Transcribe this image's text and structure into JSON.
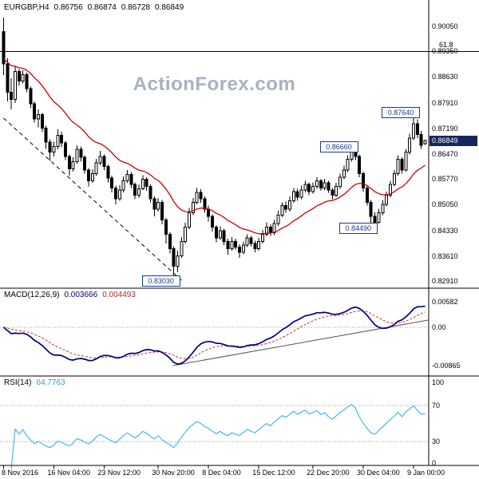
{
  "watermark": {
    "text": "ActionForex.com"
  },
  "colors": {
    "ma_line": "#d00000",
    "candle": "#000000",
    "macd_line": "#000080",
    "macd_signal": "#c03333",
    "rsi_line": "#49b8e8",
    "callout_blue": "#1a3a8c",
    "badge_bg": "#16265f",
    "watermark": "#a7b1c2"
  },
  "chart_data": {
    "type": "candlestick",
    "title": "EURGBP,H4",
    "ohlc_display": {
      "symbol": "EURGBP,H4",
      "open": "0.86756",
      "high": "0.86874",
      "low": "0.86728",
      "close": "0.86849"
    },
    "y_axis_labels": [
      "0.90050",
      "0.89350",
      "0.88630",
      "0.87910",
      "0.87190",
      "0.86470",
      "0.85770",
      "0.85050",
      "0.84330",
      "0.83610",
      "0.82910"
    ],
    "x_labels": [
      {
        "text": "8 Nov 2016",
        "bar": 0
      },
      {
        "text": "16 Nov 04:00",
        "bar": 13
      },
      {
        "text": "23 Nov 12:00",
        "bar": 26
      },
      {
        "text": "30 Nov 20:00",
        "bar": 40
      },
      {
        "text": "8 Dec 04:00",
        "bar": 53
      },
      {
        "text": "15 Dec 12:00",
        "bar": 66
      },
      {
        "text": "22 Dec 20:00",
        "bar": 80
      },
      {
        "text": "30 Dec 04:00",
        "bar": 93
      },
      {
        "text": "9 Jan 00:00",
        "bar": 106
      }
    ],
    "candles": [
      [
        0.899,
        0.903,
        0.8868,
        0.89
      ],
      [
        0.89,
        0.8915,
        0.8795,
        0.882
      ],
      [
        0.882,
        0.886,
        0.8772,
        0.88
      ],
      [
        0.88,
        0.8892,
        0.879,
        0.8878
      ],
      [
        0.8878,
        0.8885,
        0.8838,
        0.8852
      ],
      [
        0.8852,
        0.8882,
        0.8845,
        0.887
      ],
      [
        0.887,
        0.8875,
        0.882,
        0.883
      ],
      [
        0.883,
        0.8836,
        0.8776,
        0.8788
      ],
      [
        0.8788,
        0.8795,
        0.8735,
        0.8745
      ],
      [
        0.8745,
        0.8772,
        0.8722,
        0.8758
      ],
      [
        0.8758,
        0.8762,
        0.8708,
        0.872
      ],
      [
        0.872,
        0.8726,
        0.8662,
        0.868
      ],
      [
        0.868,
        0.8688,
        0.8628,
        0.8652
      ],
      [
        0.8652,
        0.8682,
        0.864,
        0.8668
      ],
      [
        0.8668,
        0.8716,
        0.866,
        0.87
      ],
      [
        0.87,
        0.871,
        0.8666,
        0.8678
      ],
      [
        0.8678,
        0.8684,
        0.863,
        0.864
      ],
      [
        0.864,
        0.8646,
        0.8586,
        0.8606
      ],
      [
        0.8606,
        0.8638,
        0.8598,
        0.8626
      ],
      [
        0.8626,
        0.8672,
        0.862,
        0.866
      ],
      [
        0.866,
        0.8668,
        0.8626,
        0.8638
      ],
      [
        0.8638,
        0.8644,
        0.8592,
        0.8602
      ],
      [
        0.8602,
        0.8608,
        0.8556,
        0.8572
      ],
      [
        0.8572,
        0.8604,
        0.8566,
        0.8592
      ],
      [
        0.8592,
        0.8634,
        0.8586,
        0.8622
      ],
      [
        0.8622,
        0.8656,
        0.8616,
        0.864
      ],
      [
        0.864,
        0.8646,
        0.8602,
        0.8612
      ],
      [
        0.8612,
        0.8618,
        0.8568,
        0.858
      ],
      [
        0.858,
        0.8586,
        0.854,
        0.8552
      ],
      [
        0.8552,
        0.8558,
        0.8506,
        0.8522
      ],
      [
        0.8522,
        0.856,
        0.8516,
        0.8546
      ],
      [
        0.8546,
        0.8584,
        0.854,
        0.8572
      ],
      [
        0.8572,
        0.8602,
        0.8566,
        0.859
      ],
      [
        0.859,
        0.8596,
        0.8552,
        0.8562
      ],
      [
        0.8562,
        0.8568,
        0.852,
        0.8532
      ],
      [
        0.8532,
        0.8562,
        0.8524,
        0.855
      ],
      [
        0.855,
        0.8588,
        0.8546,
        0.8576
      ],
      [
        0.8576,
        0.8582,
        0.8544,
        0.8556
      ],
      [
        0.8556,
        0.8562,
        0.8512,
        0.8522
      ],
      [
        0.8522,
        0.8528,
        0.8472,
        0.8492
      ],
      [
        0.8492,
        0.8524,
        0.8486,
        0.8512
      ],
      [
        0.8512,
        0.8518,
        0.845,
        0.8462
      ],
      [
        0.8462,
        0.8468,
        0.8396,
        0.8422
      ],
      [
        0.8422,
        0.8428,
        0.8368,
        0.8382
      ],
      [
        0.8382,
        0.8388,
        0.8303,
        0.8332
      ],
      [
        0.8332,
        0.8376,
        0.8316,
        0.8362
      ],
      [
        0.8362,
        0.8414,
        0.8356,
        0.8402
      ],
      [
        0.8402,
        0.8454,
        0.8396,
        0.8442
      ],
      [
        0.8442,
        0.8496,
        0.8436,
        0.8482
      ],
      [
        0.8482,
        0.8524,
        0.8476,
        0.8512
      ],
      [
        0.8512,
        0.8552,
        0.8506,
        0.854
      ],
      [
        0.854,
        0.8548,
        0.851,
        0.8522
      ],
      [
        0.8522,
        0.8528,
        0.8482,
        0.8492
      ],
      [
        0.8492,
        0.8502,
        0.8458,
        0.8472
      ],
      [
        0.8472,
        0.8478,
        0.843,
        0.8442
      ],
      [
        0.8442,
        0.8448,
        0.84,
        0.8412
      ],
      [
        0.8412,
        0.8444,
        0.8406,
        0.8432
      ],
      [
        0.8432,
        0.8438,
        0.8392,
        0.8402
      ],
      [
        0.8402,
        0.841,
        0.8365,
        0.8382
      ],
      [
        0.8382,
        0.8414,
        0.8376,
        0.8402
      ],
      [
        0.8402,
        0.841,
        0.8378,
        0.8386
      ],
      [
        0.8386,
        0.8394,
        0.8356,
        0.8372
      ],
      [
        0.8372,
        0.8402,
        0.8366,
        0.8392
      ],
      [
        0.8392,
        0.8422,
        0.8386,
        0.8412
      ],
      [
        0.8412,
        0.8418,
        0.8388,
        0.8396
      ],
      [
        0.8396,
        0.8404,
        0.8372,
        0.8382
      ],
      [
        0.8382,
        0.8412,
        0.8376,
        0.8402
      ],
      [
        0.8402,
        0.8434,
        0.8396,
        0.8422
      ],
      [
        0.8422,
        0.8456,
        0.8416,
        0.8442
      ],
      [
        0.8442,
        0.845,
        0.8418,
        0.8426
      ],
      [
        0.8426,
        0.8462,
        0.842,
        0.8452
      ],
      [
        0.8452,
        0.8488,
        0.8446,
        0.8476
      ],
      [
        0.8476,
        0.8512,
        0.847,
        0.8502
      ],
      [
        0.8502,
        0.8514,
        0.8482,
        0.8492
      ],
      [
        0.8492,
        0.8528,
        0.8486,
        0.8516
      ],
      [
        0.8516,
        0.8552,
        0.851,
        0.8542
      ],
      [
        0.8542,
        0.855,
        0.8516,
        0.8526
      ],
      [
        0.8526,
        0.8558,
        0.852,
        0.8546
      ],
      [
        0.8546,
        0.8572,
        0.854,
        0.8562
      ],
      [
        0.8562,
        0.8568,
        0.8532,
        0.8542
      ],
      [
        0.8542,
        0.8568,
        0.8536,
        0.8556
      ],
      [
        0.8556,
        0.8582,
        0.855,
        0.8572
      ],
      [
        0.8572,
        0.8578,
        0.8544,
        0.8552
      ],
      [
        0.8552,
        0.8578,
        0.8546,
        0.8566
      ],
      [
        0.8566,
        0.8572,
        0.8538,
        0.8546
      ],
      [
        0.8546,
        0.8552,
        0.852,
        0.8532
      ],
      [
        0.8532,
        0.8566,
        0.8526,
        0.8556
      ],
      [
        0.8556,
        0.8592,
        0.855,
        0.8582
      ],
      [
        0.8582,
        0.8614,
        0.8576,
        0.8602
      ],
      [
        0.8602,
        0.8644,
        0.8596,
        0.8632
      ],
      [
        0.8632,
        0.8666,
        0.8626,
        0.8656
      ],
      [
        0.8656,
        0.8662,
        0.863,
        0.864
      ],
      [
        0.864,
        0.8646,
        0.8582,
        0.8592
      ],
      [
        0.8592,
        0.8598,
        0.8542,
        0.8552
      ],
      [
        0.8552,
        0.8558,
        0.8502,
        0.8512
      ],
      [
        0.8512,
        0.8518,
        0.8449,
        0.8472
      ],
      [
        0.8472,
        0.8484,
        0.845,
        0.8456
      ],
      [
        0.8456,
        0.8494,
        0.8452,
        0.8482
      ],
      [
        0.8482,
        0.8518,
        0.8476,
        0.8506
      ],
      [
        0.8506,
        0.8542,
        0.85,
        0.8532
      ],
      [
        0.8532,
        0.8572,
        0.8526,
        0.8562
      ],
      [
        0.8562,
        0.8602,
        0.8556,
        0.8592
      ],
      [
        0.8592,
        0.8644,
        0.8586,
        0.8632
      ],
      [
        0.8632,
        0.8638,
        0.8592,
        0.8602
      ],
      [
        0.8602,
        0.8662,
        0.8598,
        0.8652
      ],
      [
        0.8652,
        0.8704,
        0.8646,
        0.8692
      ],
      [
        0.8692,
        0.8764,
        0.8686,
        0.8732
      ],
      [
        0.8732,
        0.8744,
        0.8692,
        0.8702
      ],
      [
        0.8702,
        0.8712,
        0.8662,
        0.8672
      ],
      [
        0.86756,
        0.86874,
        0.86728,
        0.86849
      ]
    ],
    "overlays": {
      "ma": {
        "type": "ema",
        "period": 20,
        "seed": 0.8945
      },
      "trendline": {
        "from_bar": 0,
        "from_price": 0.8748,
        "to_bar": 46,
        "to_price": 0.8293,
        "style": "dashed"
      },
      "fib_level": {
        "label": "61.8",
        "price": 0.8935
      },
      "callouts": [
        {
          "text": "0.87640",
          "bar": 106,
          "price": 0.8764,
          "side": "high"
        },
        {
          "text": "0.86660",
          "bar": 90,
          "price": 0.8666,
          "side": "high"
        },
        {
          "text": "0.84490",
          "bar": 95,
          "price": 0.8449,
          "side": "low"
        },
        {
          "text": "0.83030",
          "bar": 44,
          "price": 0.8303,
          "side": "low"
        }
      ],
      "current_price": {
        "text": "0.86849",
        "price": 0.86849
      }
    },
    "macd": {
      "label": "MACD(12,26,9)",
      "values": [
        "0.003666",
        "0.004493"
      ],
      "params": [
        12,
        26,
        9
      ],
      "axis_labels": [
        "0.00582",
        "0.00",
        "-0.00865"
      ],
      "trendline_note": "rising support line from MACD trough to right edge just above zero"
    },
    "rsi": {
      "label": "RSI(14)",
      "value": "64.7763",
      "period": 14,
      "axis_labels": [
        "100",
        "70",
        "30",
        "0"
      ],
      "levels": [
        70,
        30
      ]
    }
  }
}
